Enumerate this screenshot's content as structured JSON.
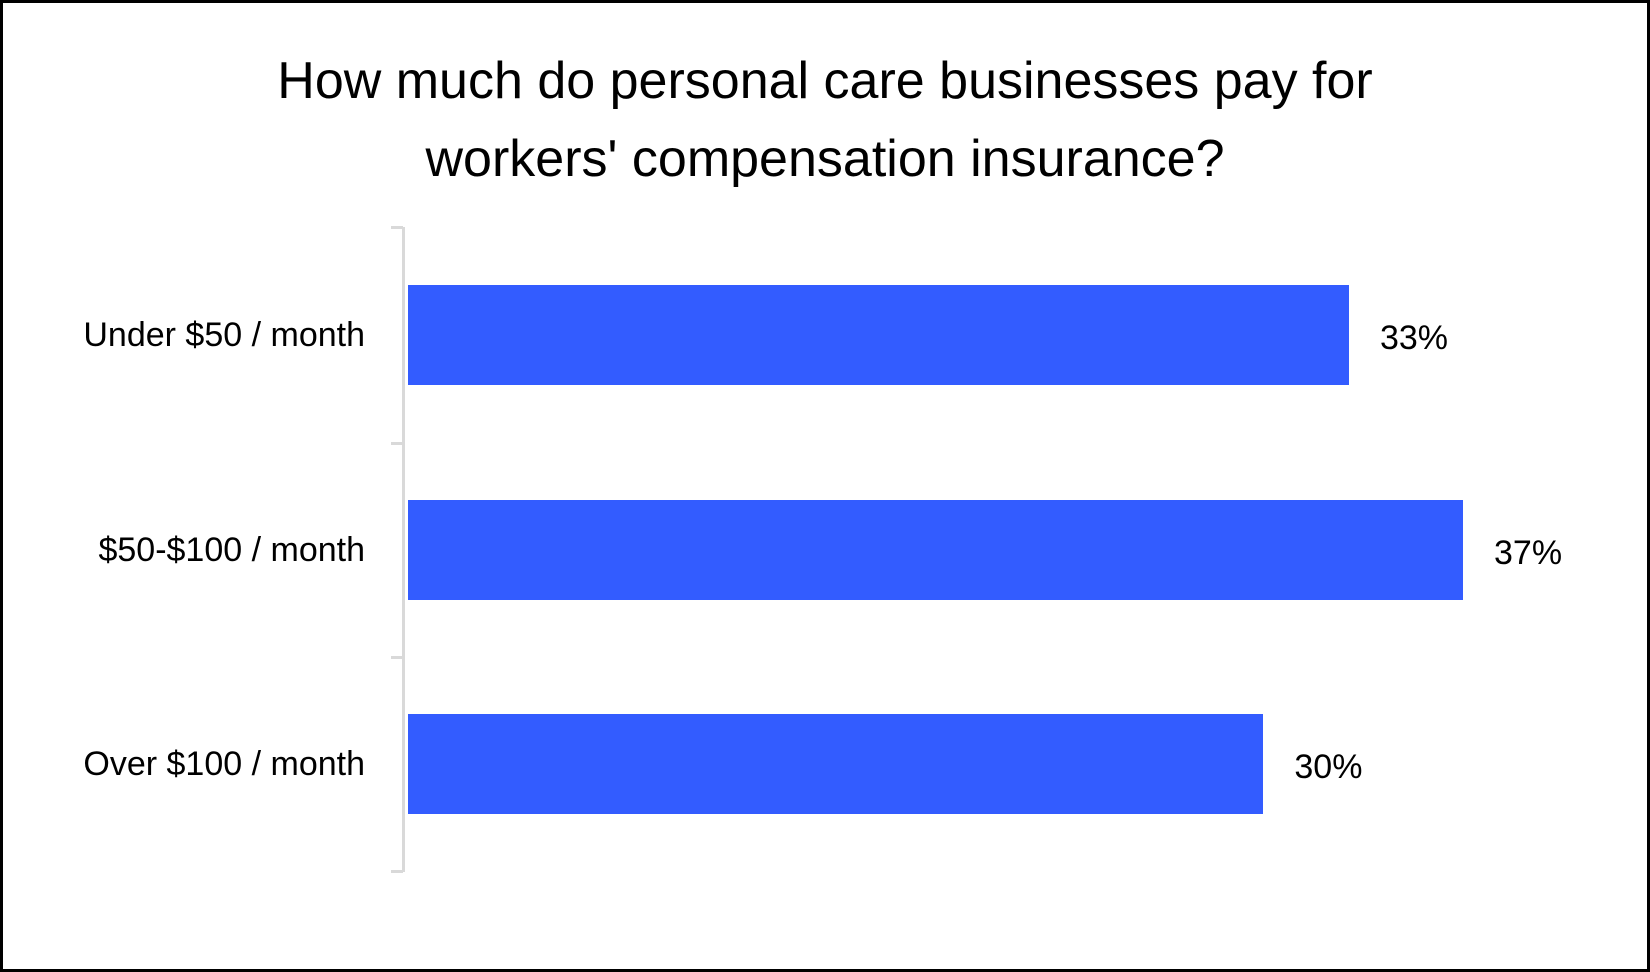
{
  "chart_data": {
    "type": "bar",
    "orientation": "horizontal",
    "title": "How much do personal care businesses pay for workers' compensation insurance?",
    "title_lines": [
      "How much do personal care businesses pay for",
      "workers' compensation insurance?"
    ],
    "categories": [
      "Under $50 / month",
      "$50-$100 / month",
      "Over $100 / month"
    ],
    "values": [
      33,
      37,
      30
    ],
    "value_labels": [
      "33%",
      "37%",
      "30%"
    ],
    "xlabel": "",
    "ylabel": "",
    "xlim": [
      0,
      37
    ],
    "grid": false,
    "legend": null,
    "bar_color": "#335CFF"
  }
}
